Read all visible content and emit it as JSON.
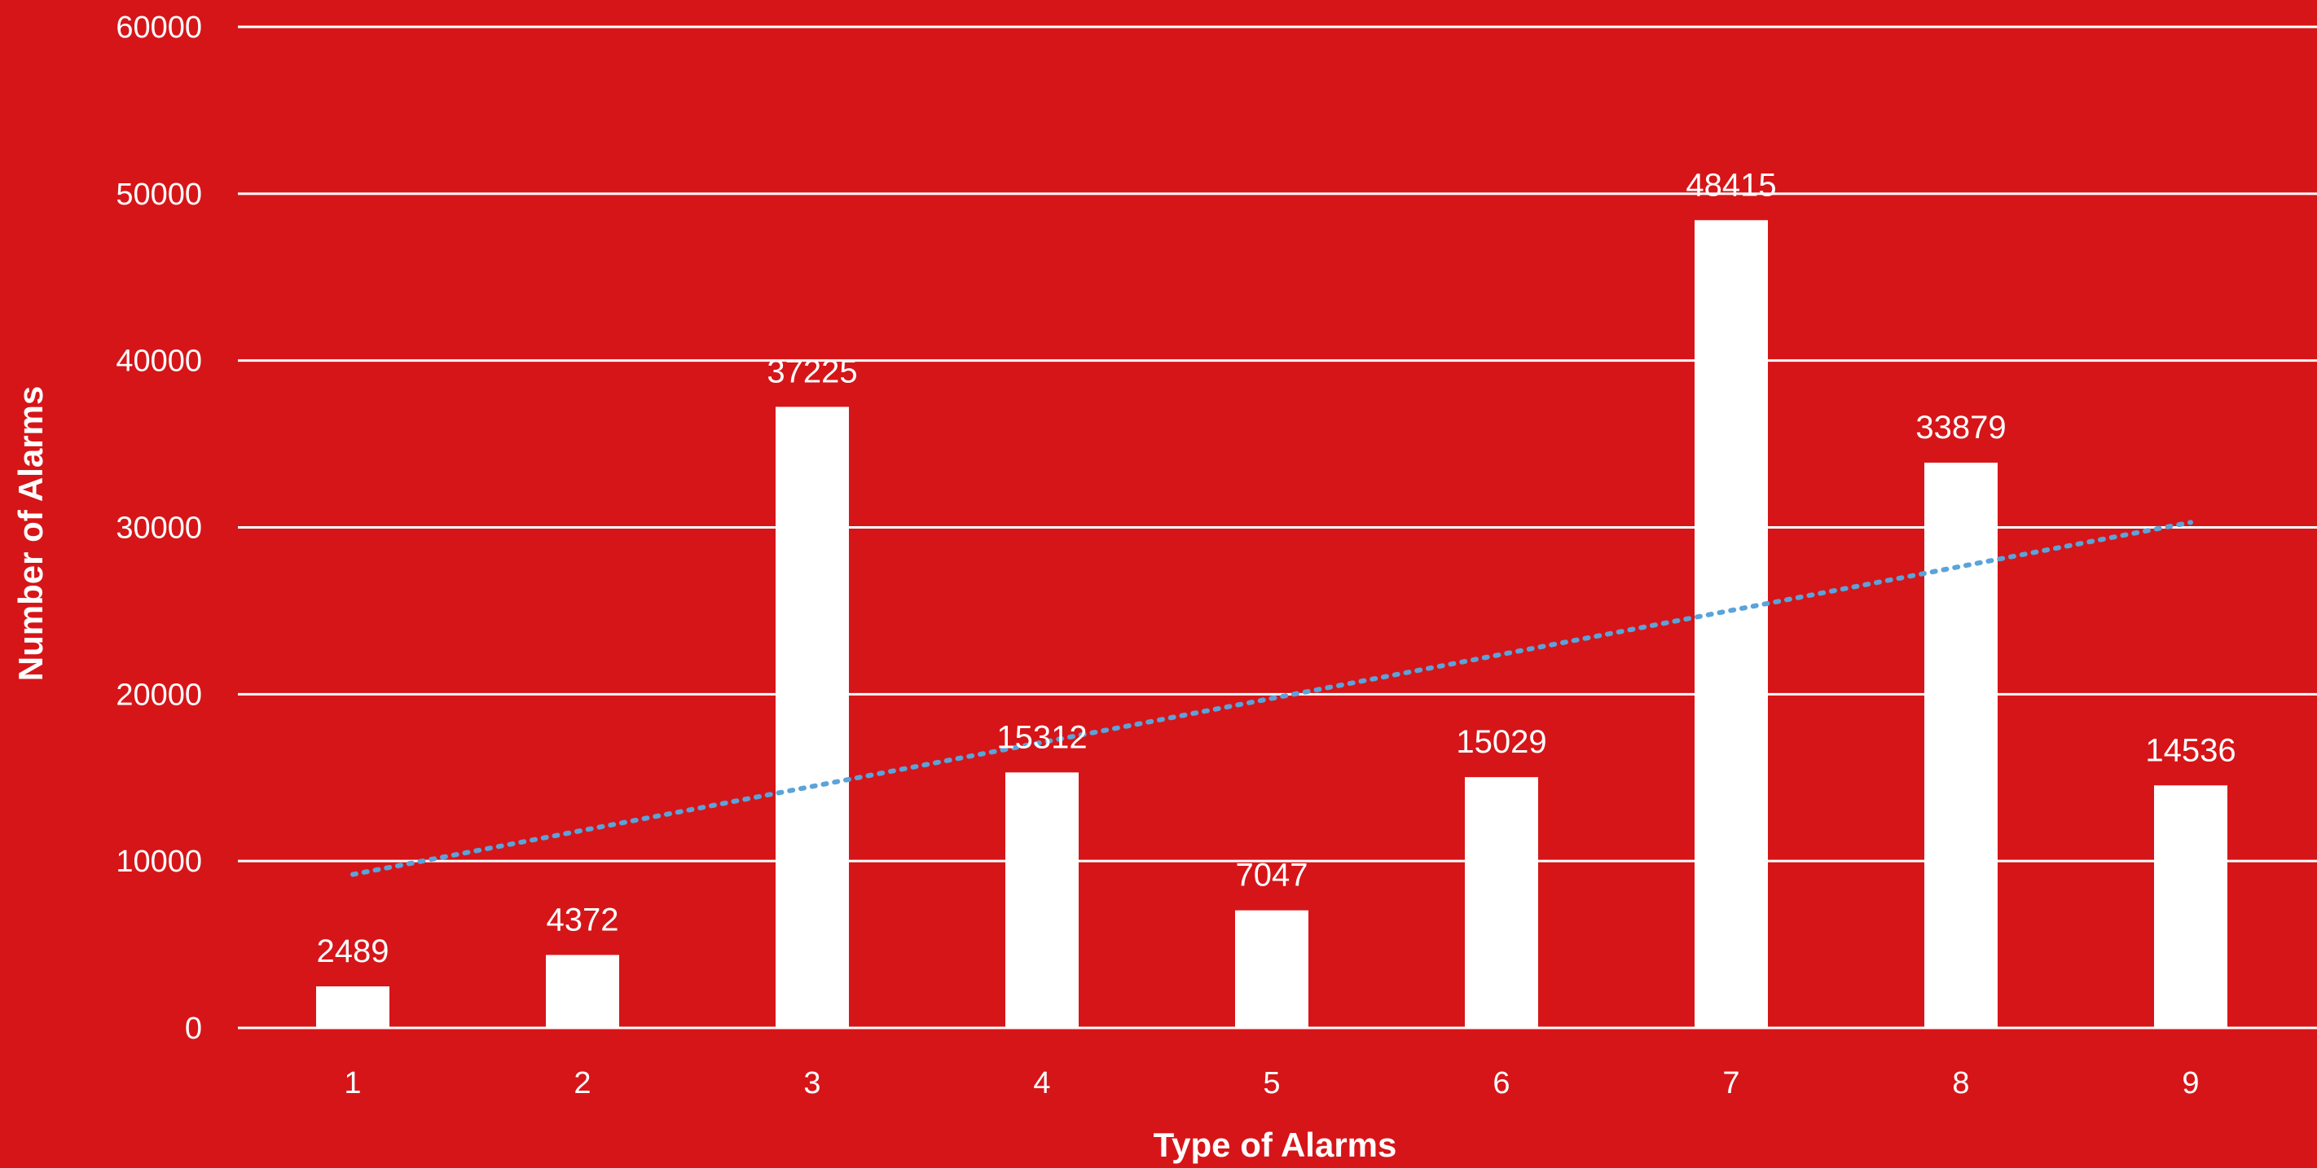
{
  "colors": {
    "background": "#d61518",
    "bars": "#ffffff",
    "grid": "#ffffff",
    "trendline": "#5ba3d9",
    "text": "#ffffff"
  },
  "chart_data": {
    "type": "bar",
    "xlabel": "Type of Alarms",
    "ylabel": "Number of Alarms",
    "categories": [
      "1",
      "2",
      "3",
      "4",
      "5",
      "6",
      "7",
      "8",
      "9"
    ],
    "values": [
      2489,
      4372,
      37225,
      15312,
      7047,
      15029,
      48415,
      33879,
      14536
    ],
    "data_labels": [
      "2489",
      "4372",
      "37225",
      "15312",
      "7047",
      "15029",
      "48415",
      "33879",
      "14536"
    ],
    "ylim": [
      0,
      60000
    ],
    "yticks": [
      0,
      10000,
      20000,
      30000,
      40000,
      50000,
      60000
    ],
    "ytick_labels": [
      "0",
      "10000",
      "20000",
      "30000",
      "40000",
      "50000",
      "60000"
    ],
    "grid": true,
    "legend": "none",
    "trendline": {
      "type": "linear",
      "style": "dotted",
      "start_value": 9200,
      "end_value": 30300
    }
  }
}
